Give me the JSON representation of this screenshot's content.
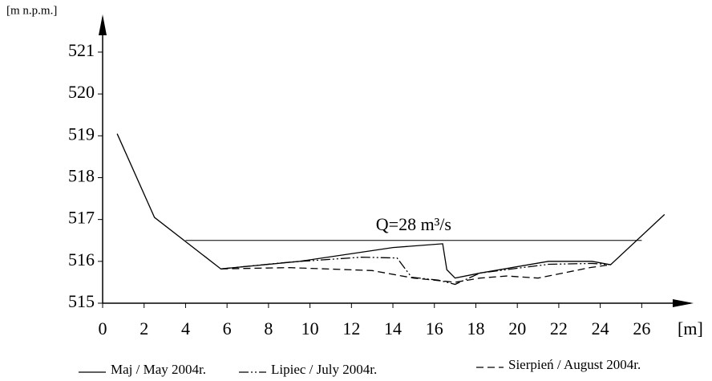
{
  "chart_data": {
    "type": "line",
    "x_label": "[m]",
    "y_label": "[m n.p.m.]",
    "xlim": [
      0,
      28.5
    ],
    "ylim": [
      515,
      521.9
    ],
    "xticks": [
      0,
      2,
      4,
      6,
      8,
      10,
      12,
      14,
      16,
      18,
      20,
      22,
      24,
      26
    ],
    "yticks": [
      515,
      516,
      517,
      518,
      519,
      520,
      521
    ],
    "annotation": {
      "text": "Q=28 m³/s",
      "x": [
        4,
        26
      ],
      "y": 516.5
    },
    "series": [
      {
        "name": "Maj / May 2004r.",
        "color": "#000000",
        "style": "solid",
        "x": [
          0.7,
          2.5,
          5.7,
          9.5,
          14,
          16.4,
          16.6,
          17.0,
          18.2,
          21.5,
          23.6,
          24.5,
          27.1
        ],
        "values": [
          519.05,
          517.05,
          515.82,
          516.0,
          516.33,
          516.42,
          515.8,
          515.6,
          515.72,
          516.0,
          516.0,
          515.92,
          517.12
        ]
      },
      {
        "name": "Lipiec / July 2004r.",
        "color": "#000000",
        "style": "dashdot",
        "x": [
          5.7,
          9,
          12.5,
          14.2,
          14.9,
          16.2,
          17,
          18.2,
          21.5,
          23.6,
          24.5
        ],
        "values": [
          515.82,
          515.98,
          516.1,
          516.08,
          515.62,
          515.55,
          515.45,
          515.72,
          515.93,
          515.95,
          515.92
        ]
      },
      {
        "name": "Sierpień / August 2004r.",
        "color": "#000000",
        "style": "dashed",
        "x": [
          5.7,
          9,
          13,
          15,
          17,
          18.2,
          19.5,
          21,
          23.5,
          24.5
        ],
        "values": [
          515.82,
          515.85,
          515.78,
          515.6,
          515.5,
          515.6,
          515.65,
          515.6,
          515.85,
          515.92
        ]
      }
    ]
  }
}
